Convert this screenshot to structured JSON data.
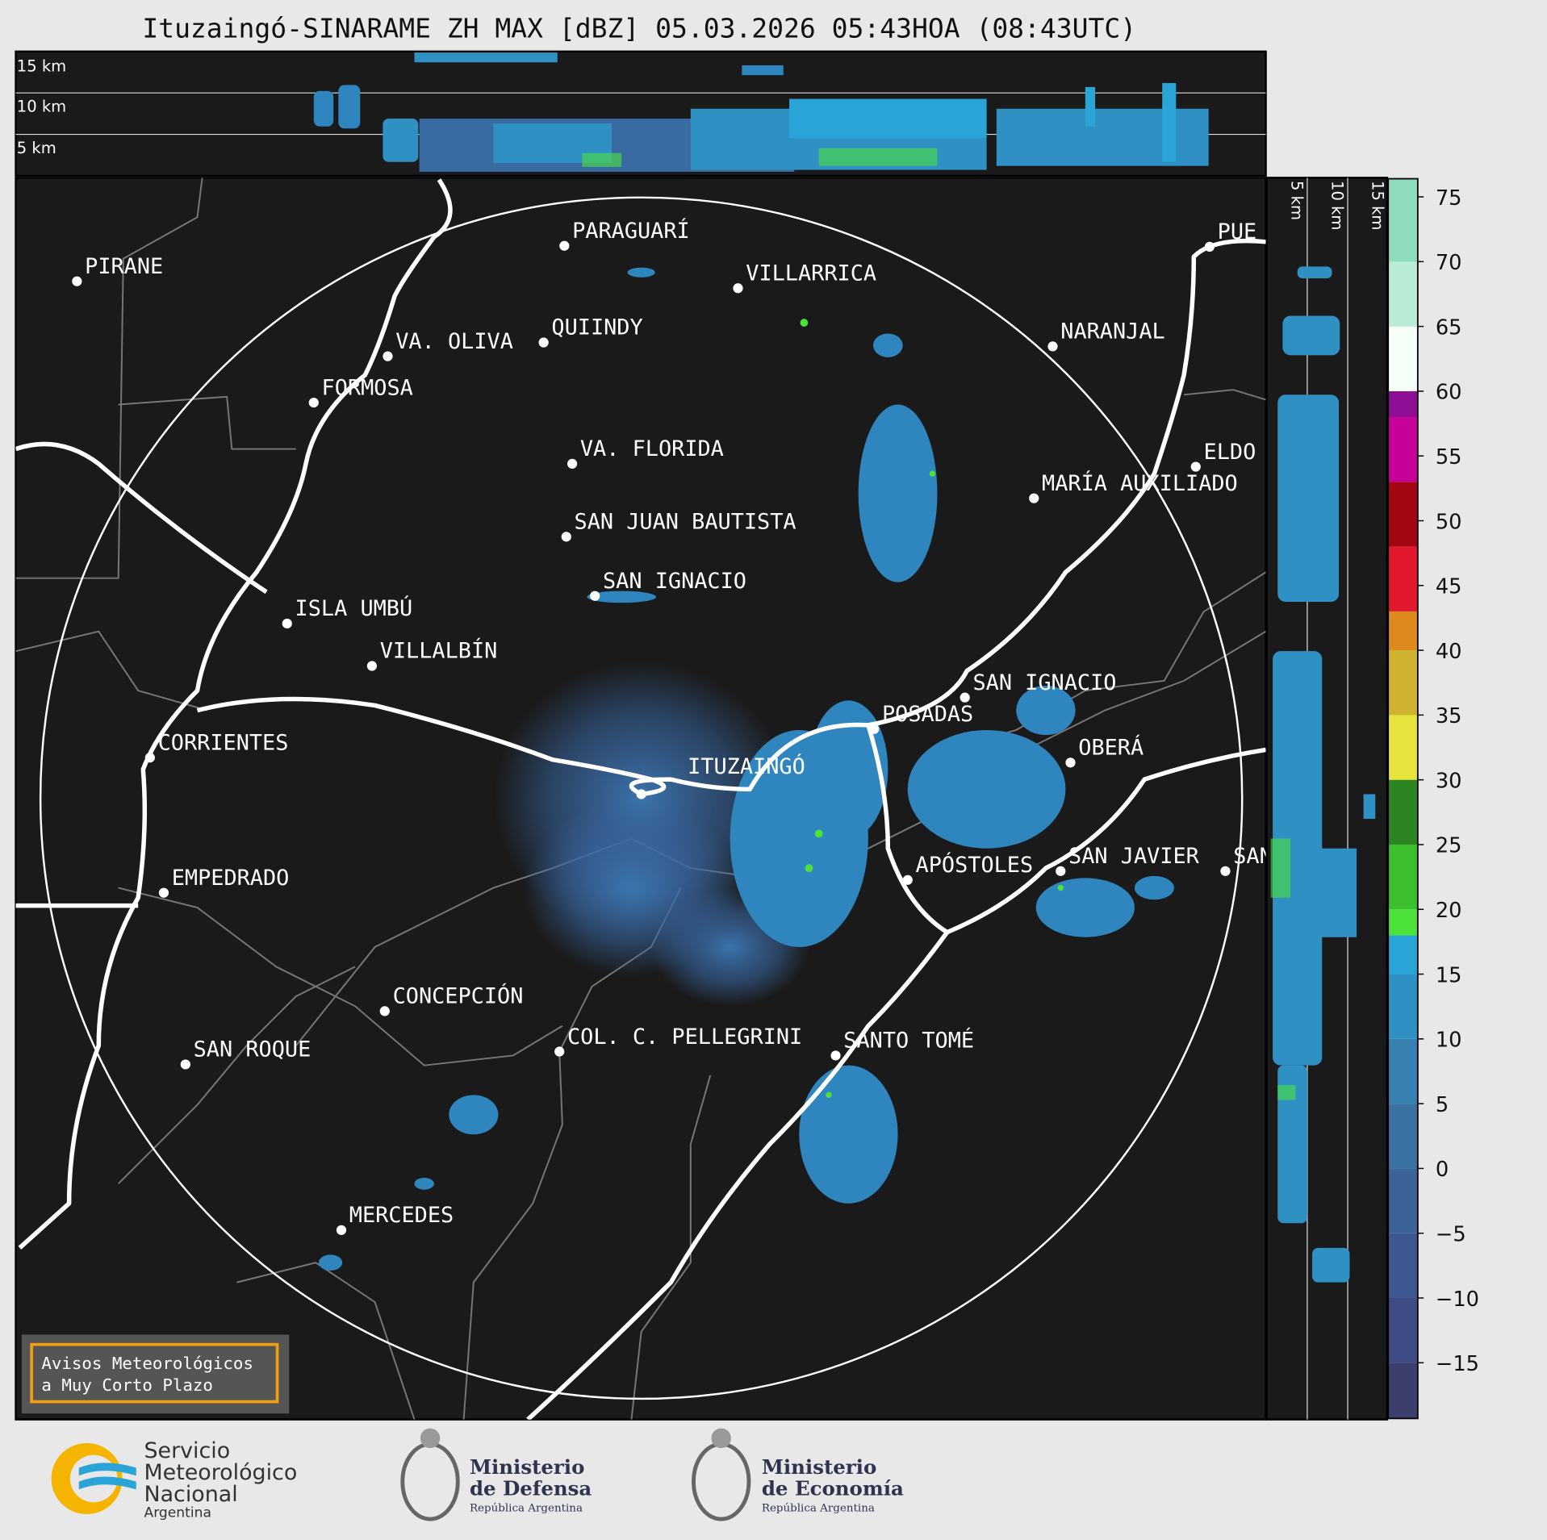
{
  "title": "Ituzaingó-SINARAME ZH MAX [dBZ] 05.03.2026 05:43HOA (08:43UTC)",
  "height_panel": {
    "top_labels": [
      "15 km",
      "10 km",
      "5 km"
    ],
    "side_labels": [
      "5 km",
      "10 km",
      "15 km"
    ]
  },
  "map": {
    "cities": [
      "PARAGUARÍ",
      "VILLARRICA",
      "PIRANE",
      "QUIINDY",
      "VA. OLIVA",
      "NARANJAL",
      "FORMOSA",
      "VA. FLORIDA",
      "PUE",
      "ELDO",
      "MARÍA AUXILIADO",
      "SAN JUAN BAUTISTA",
      "SAN IGNACIO",
      "ISLA UMBÚ",
      "VILLALBÍN",
      "SAN IGNACIO",
      "POSADAS",
      "CORRIENTES",
      "OBERÁ",
      "ITUZAINGÓ",
      "APÓSTOLES",
      "SAN JAVIER",
      "SAN",
      "EMPEDRADO",
      "CONCEPCIÓN",
      "COL. C. PELLEGRINI",
      "SANTO TOMÉ",
      "SAN ROQUE",
      "MERCEDES"
    ]
  },
  "colorbar": {
    "lim": [
      -19.3,
      76.4
    ],
    "levels": [
      -19.3,
      -15,
      -10,
      -5,
      0,
      5,
      10,
      15,
      18,
      20,
      25,
      30,
      35,
      40,
      43,
      48,
      53,
      58,
      60,
      65,
      70,
      76.4
    ],
    "colors": [
      "#3c3f6d",
      "#3f4b85",
      "#3d5790",
      "#3b6398",
      "#3a70a2",
      "#3680b2",
      "#2f91c3",
      "#2aa4d6",
      "#4de23a",
      "#3cbf2c",
      "#2c8522",
      "#e6e43c",
      "#cfb32e",
      "#dc8a1e",
      "#e2182e",
      "#a30812",
      "#c8009a",
      "#8e0e96",
      "#f4fff8",
      "#b9ebd6",
      "#8ddcbb"
    ],
    "ticks": [
      {
        "value": -15,
        "label": "−15"
      },
      {
        "value": -10,
        "label": "−10"
      },
      {
        "value": -5,
        "label": "−5"
      },
      0,
      5,
      10,
      15,
      20,
      25,
      30,
      35,
      40,
      45,
      50,
      55,
      60,
      65,
      70,
      75
    ]
  },
  "notice": {
    "lines": [
      "Avisos Meteorológicos",
      "a Muy Corto Plazo"
    ]
  },
  "footer": {
    "smn": [
      "Servicio",
      "Meteorológico",
      "Nacional",
      "Argentina"
    ],
    "defensa": [
      "Ministerio",
      "de Defensa",
      "República Argentina"
    ],
    "economia": [
      "Ministerio",
      "de Economía",
      "República Argentina"
    ]
  }
}
